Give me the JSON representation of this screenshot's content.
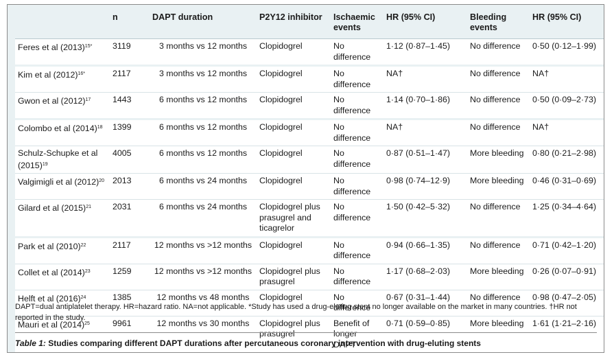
{
  "table": {
    "headers": [
      "",
      "n",
      "DAPT duration",
      "P2Y12 inhibitor",
      "Ischaemic events",
      "HR (95% CI)",
      "Bleeding events",
      "HR (95% CI)"
    ],
    "rows": [
      {
        "study": "Feres et al (2013)",
        "ref": "15*",
        "n": "3119",
        "duration": "3 months vs 12 months",
        "inhibitor": "Clopidogrel",
        "ischaemic": "No difference",
        "hr1": "1·12 (0·87–1·45)",
        "bleeding": "No difference",
        "hr2": "0·50 (0·12–1·99)"
      },
      {
        "study": "Kim et al (2012)",
        "ref": "16*",
        "n": "2117",
        "duration": "3 months vs 12 months",
        "inhibitor": "Clopidogrel",
        "ischaemic": "No difference",
        "hr1": "NA†",
        "bleeding": "No difference",
        "hr2": "NA†"
      },
      {
        "study": "Gwon et al (2012)",
        "ref": "17",
        "n": "1443",
        "duration": "6 months vs 12 months",
        "inhibitor": "Clopidogrel",
        "ischaemic": "No difference",
        "hr1": "1·14 (0·70–1·86)",
        "bleeding": "No difference",
        "hr2": "0·50 (0·09–2·73)"
      },
      {
        "study": "Colombo et al (2014)",
        "ref": "18",
        "n": "1399",
        "duration": "6 months vs 12 months",
        "inhibitor": "Clopidogrel",
        "ischaemic": "No difference",
        "hr1": "NA†",
        "bleeding": "No difference",
        "hr2": "NA†"
      },
      {
        "study": "Schulz-Schupke et al (2015)",
        "ref": "19",
        "n": "4005",
        "duration": "6 months vs 12 months",
        "inhibitor": "Clopidogrel",
        "ischaemic": "No difference",
        "hr1": "0·87 (0·51–1·47)",
        "bleeding": "More bleeding",
        "hr2": "0·80 (0·21–2·98)"
      },
      {
        "study": "Valgimigli et al (2012)",
        "ref": "20",
        "n": "2013",
        "duration": "6 months vs 24 months",
        "inhibitor": "Clopidogrel",
        "ischaemic": "No difference",
        "hr1": "0·98 (0·74–12·9)",
        "bleeding": "More bleeding",
        "hr2": "0·46 (0·31–0·69)"
      },
      {
        "study": "Gilard et al (2015)",
        "ref": "21",
        "n": "2031",
        "duration": "6 months vs 24 months",
        "inhibitor": "Clopidogrel plus prasugrel and ticagrelor",
        "ischaemic": "No difference",
        "hr1": "1·50 (0·42–5·32)",
        "bleeding": "No difference",
        "hr2": "1·25 (0·34–4·64)"
      },
      {
        "study": "Park et al (2010)",
        "ref": "22",
        "n": "2117",
        "duration": "12 months vs >12 months",
        "inhibitor": "Clopidogrel",
        "ischaemic": "No difference",
        "hr1": "0·94 (0·66–1·35)",
        "bleeding": "No difference",
        "hr2": "0·71 (0·42–1·20)"
      },
      {
        "study": "Collet et al (2014)",
        "ref": "23",
        "n": "1259",
        "duration": "12 months vs >12 months",
        "inhibitor": "Clopidogrel plus prasugrel",
        "ischaemic": "No difference",
        "hr1": "1·17 (0·68–2·03)",
        "bleeding": "More bleeding",
        "hr2": "0·26 (0·07–0·91)"
      },
      {
        "study": "Helft et al (2016)",
        "ref": "24",
        "n": "1385",
        "duration": "12 months vs 48 months",
        "inhibitor": "Clopidogrel",
        "ischaemic": "No difference",
        "hr1": "0·67 (0·31–1·44)",
        "bleeding": "No difference",
        "hr2": "0·98 (0·47–2·05)"
      },
      {
        "study": "Mauri et al (2014)",
        "ref": "25",
        "n": "9961",
        "duration": "12 months vs 30 months",
        "inhibitor": "Clopidogrel plus prasugrel",
        "ischaemic": "Benefit of longer DAPT",
        "hr1": "0·71 (0·59–0·85)",
        "bleeding": "More bleeding",
        "hr2": "1·61 (1·21–2·16)"
      }
    ]
  },
  "footnote": "DAPT=dual antiplatelet therapy. HR=hazard ratio. NA=not applicable. *Study has used a drug-eluting stent no longer available on the market in many countries. †HR not reported in the study.",
  "caption": {
    "label": "Table 1:",
    "text": " Studies comparing different DAPT durations after percutaneous coronary intervention with drug-eluting stents"
  }
}
